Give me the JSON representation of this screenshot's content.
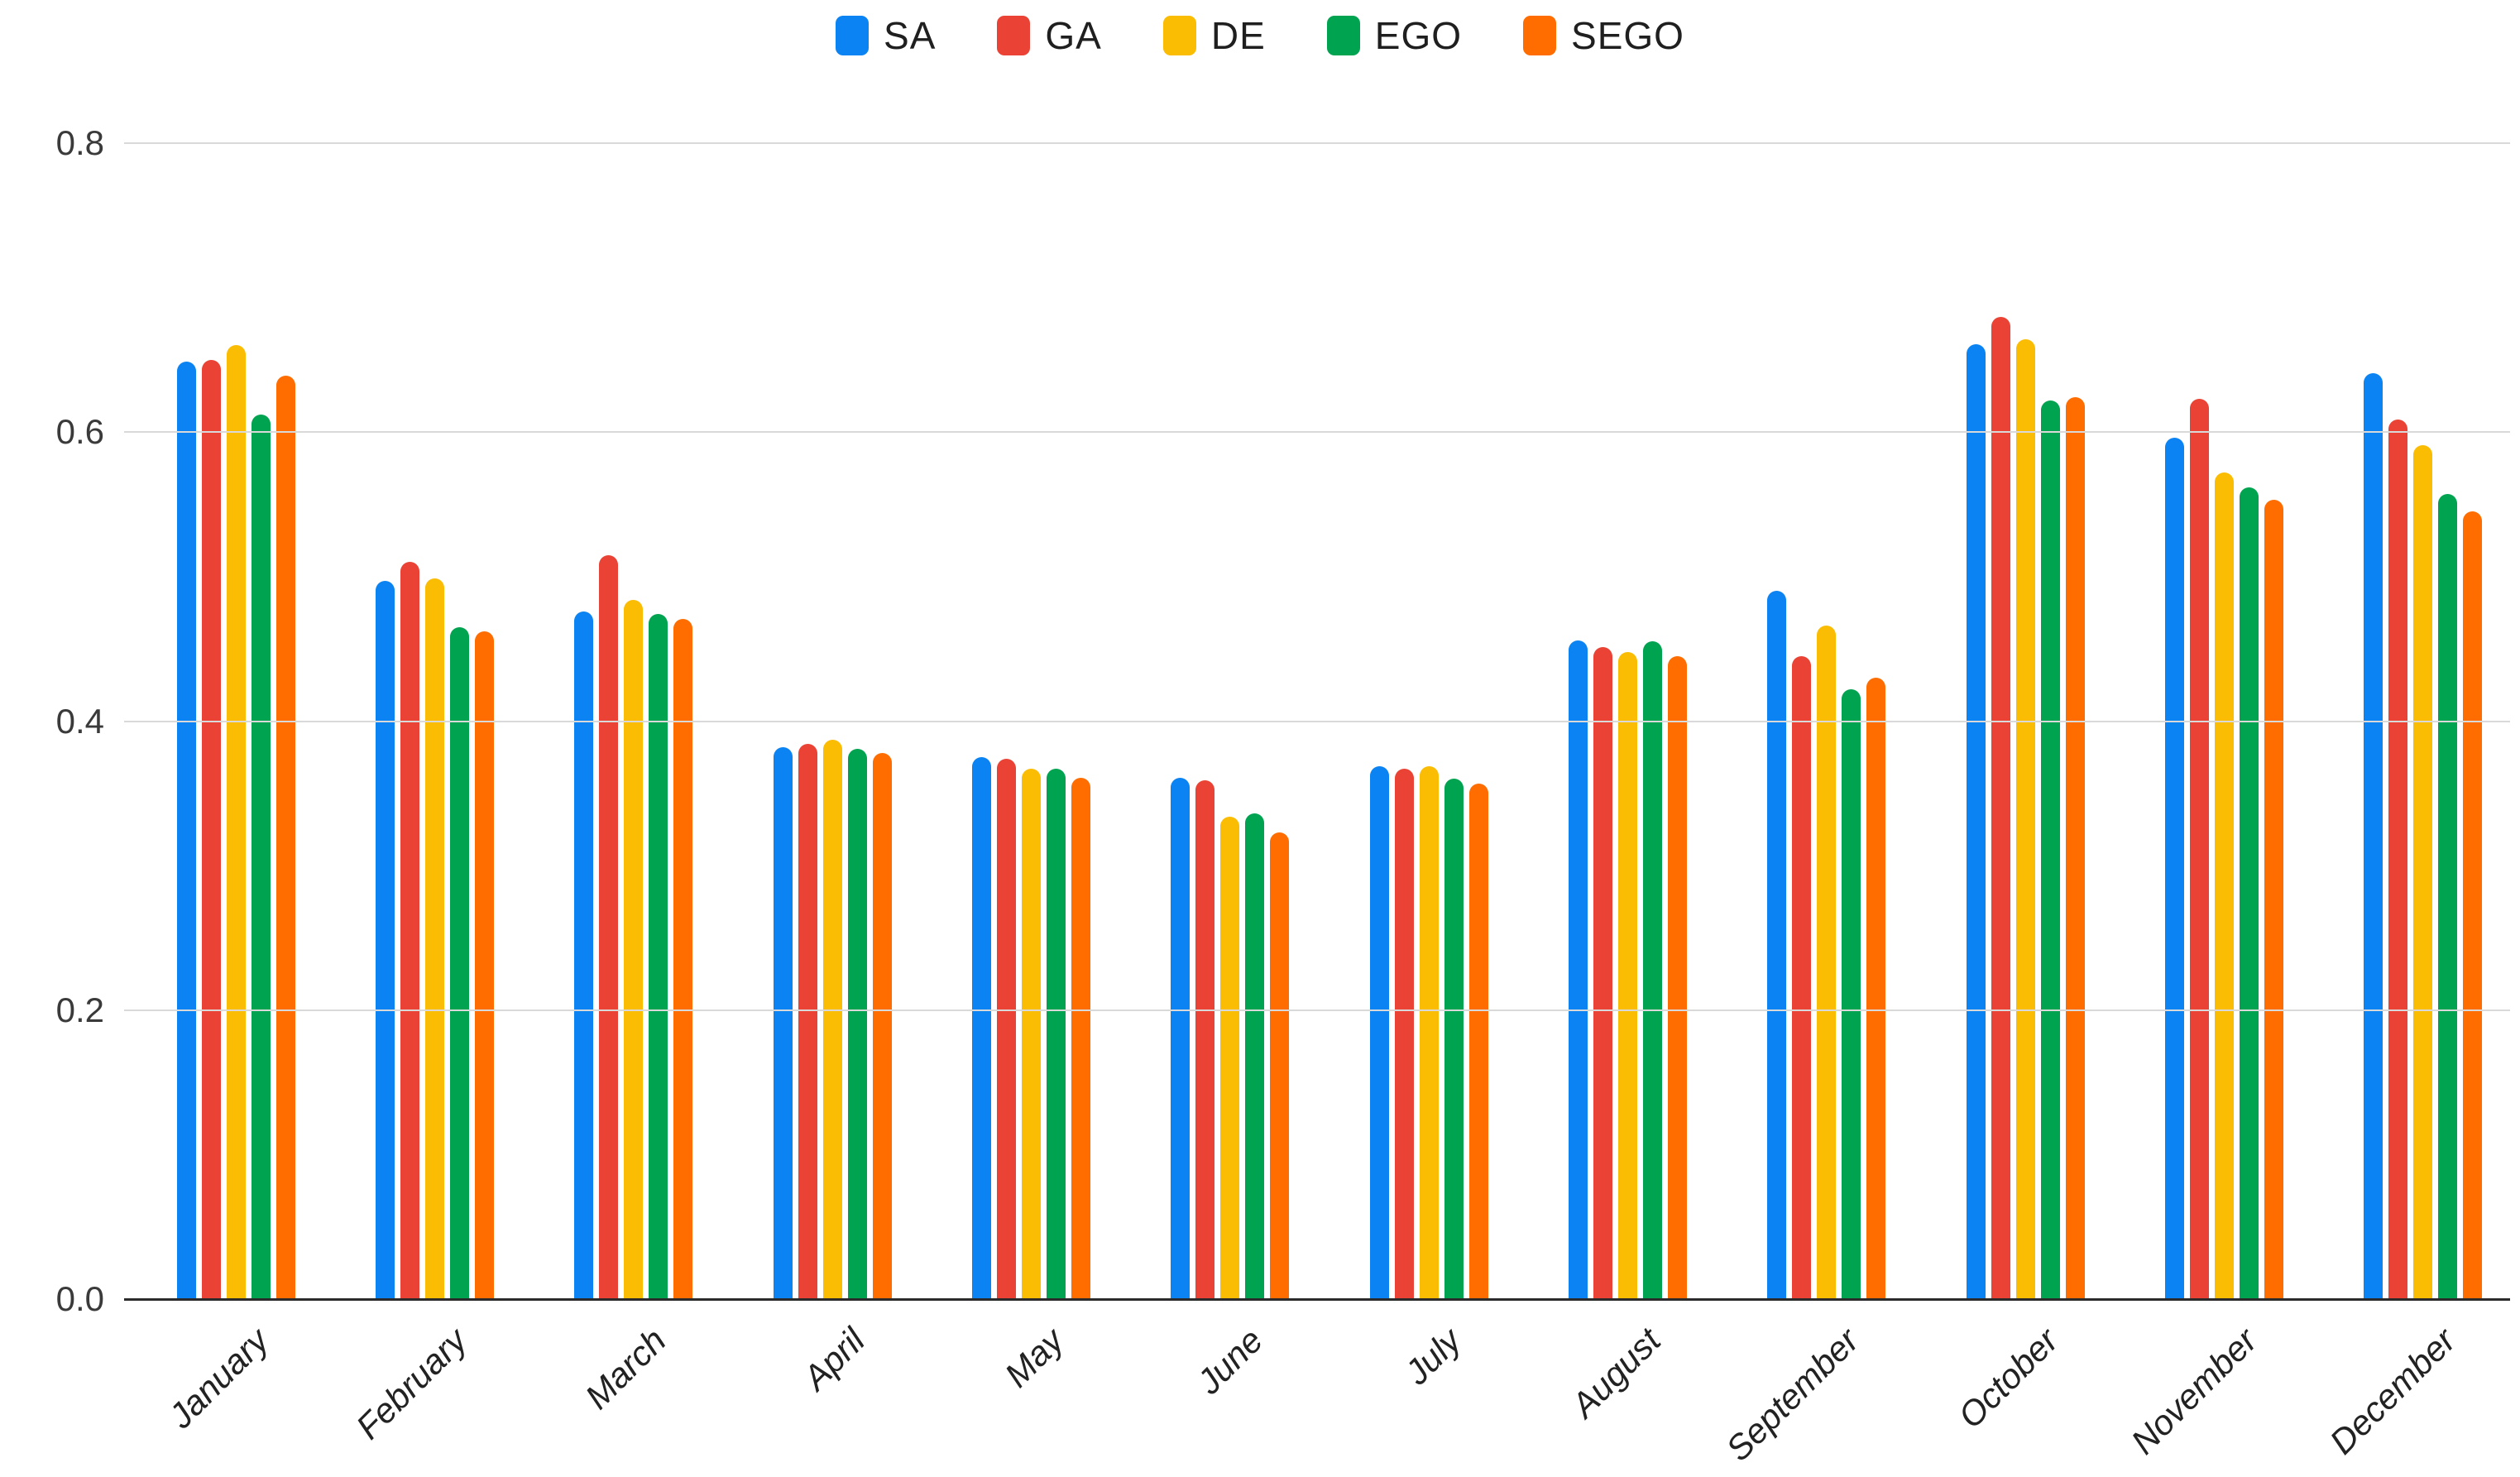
{
  "chart_data": {
    "type": "bar",
    "title": "",
    "xlabel": "",
    "ylabel": "",
    "categories": [
      "January",
      "February",
      "March",
      "April",
      "May",
      "June",
      "July",
      "August",
      "September",
      "October",
      "November",
      "December"
    ],
    "series": [
      {
        "name": "SA",
        "color": "#0b83f2",
        "values": [
          0.649,
          0.497,
          0.476,
          0.382,
          0.375,
          0.361,
          0.369,
          0.456,
          0.49,
          0.661,
          0.596,
          0.641
        ]
      },
      {
        "name": "GA",
        "color": "#ea4335",
        "values": [
          0.65,
          0.51,
          0.515,
          0.384,
          0.374,
          0.359,
          0.367,
          0.451,
          0.445,
          0.68,
          0.623,
          0.609
        ]
      },
      {
        "name": "DE",
        "color": "#fbbc04",
        "values": [
          0.66,
          0.499,
          0.484,
          0.387,
          0.367,
          0.334,
          0.369,
          0.448,
          0.466,
          0.664,
          0.572,
          0.591
        ]
      },
      {
        "name": "EGO",
        "color": "#00a350",
        "values": [
          0.612,
          0.465,
          0.474,
          0.381,
          0.367,
          0.336,
          0.36,
          0.455,
          0.422,
          0.622,
          0.562,
          0.557
        ]
      },
      {
        "name": "SEGO",
        "color": "#ff6d00",
        "values": [
          0.639,
          0.462,
          0.471,
          0.378,
          0.361,
          0.323,
          0.357,
          0.445,
          0.43,
          0.624,
          0.553,
          0.545
        ]
      }
    ],
    "ylim": [
      0,
      0.8
    ],
    "yticks": [
      "0.0",
      "0.2",
      "0.4",
      "0.6",
      "0.8"
    ],
    "ytick_values": [
      0.0,
      0.2,
      0.4,
      0.6,
      0.8
    ],
    "grid": true,
    "gridline_color": "#d9d9d9",
    "axis_color": "#2b2b2b",
    "legend_position": "top"
  }
}
